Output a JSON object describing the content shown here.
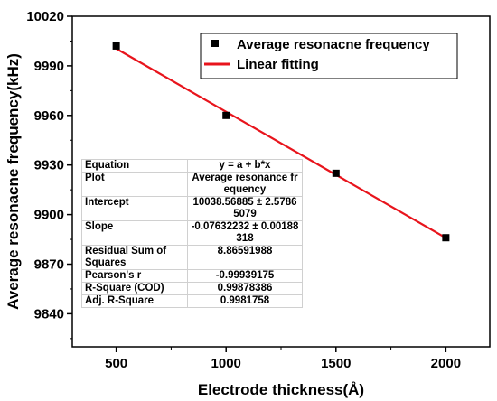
{
  "chart_data": {
    "type": "scatter",
    "xlabel": "Electrode thickness(Å)",
    "ylabel": "Average resonacne frequency(kHz)",
    "xlim": [
      300,
      2200
    ],
    "ylim": [
      9820,
      10020
    ],
    "x_ticks": [
      500,
      1000,
      1500,
      2000
    ],
    "y_ticks": [
      9840,
      9870,
      9900,
      9930,
      9960,
      9990,
      10020
    ],
    "legend_position": "top-right",
    "series": [
      {
        "name": "Average resonacne frequency",
        "kind": "scatter",
        "marker": "square",
        "color": "#000000",
        "x": [
          500,
          1000,
          1500,
          2000
        ],
        "y": [
          10002,
          9960,
          9925,
          9886
        ]
      },
      {
        "name": "Linear fitting",
        "kind": "line",
        "color": "#e8141c",
        "x": [
          500,
          2000
        ],
        "y": [
          10000.4,
          9885.9
        ]
      }
    ],
    "fit_table": [
      {
        "key": "Equation",
        "value": "y = a + b*x"
      },
      {
        "key": "Plot",
        "value": "Average resonance frequency"
      },
      {
        "key": "Intercept",
        "value": "10038.56885 ± 2.57865079"
      },
      {
        "key": "Slope",
        "value": "-0.07632232 ± 0.00188318"
      },
      {
        "key": "Residual Sum of Squares",
        "value": "8.86591988"
      },
      {
        "key": "Pearson's r",
        "value": "-0.99939175"
      },
      {
        "key": "R-Square (COD)",
        "value": "0.99878386"
      },
      {
        "key": "Adj. R-Square",
        "value": "0.9981758"
      }
    ]
  }
}
